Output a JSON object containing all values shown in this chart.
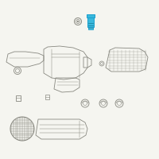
{
  "bg_color": "#f5f5f0",
  "line_color": "#888880",
  "highlight_color": "#1a9fce",
  "highlight_fill": "#3ab8dc",
  "highlight_dark": "#0d6e8a",
  "fig_size": [
    2.0,
    2.0
  ],
  "dpi": 100
}
